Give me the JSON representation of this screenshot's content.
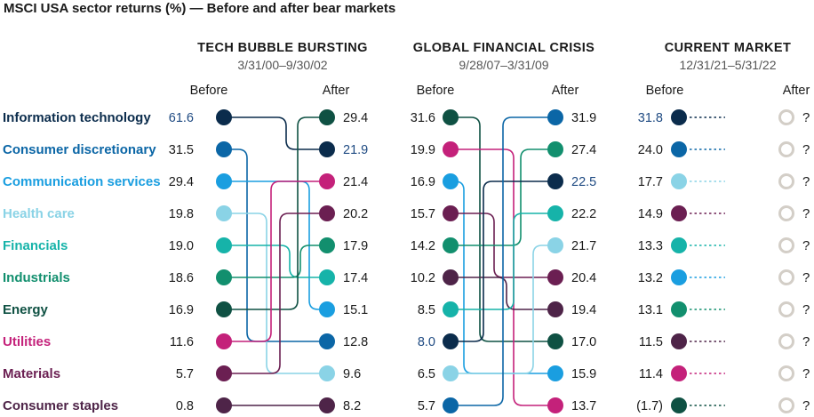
{
  "chart_data": {
    "type": "slope",
    "title": "MSCI USA sector returns (%) — Before and after bear markets",
    "before_label": "Before",
    "after_label": "After",
    "sectors": [
      {
        "name": "Information technology",
        "color": "#0b2c4c"
      },
      {
        "name": "Consumer discretionary",
        "color": "#0b66a6"
      },
      {
        "name": "Communication services",
        "color": "#1a9ee0"
      },
      {
        "name": "Health care",
        "color": "#8ad3e6"
      },
      {
        "name": "Financials",
        "color": "#16b3a9"
      },
      {
        "name": "Industrials",
        "color": "#128f6e"
      },
      {
        "name": "Energy",
        "color": "#0f5143"
      },
      {
        "name": "Utilities",
        "color": "#c4217a"
      },
      {
        "name": "Materials",
        "color": "#6b1f52"
      },
      {
        "name": "Consumer staples",
        "color": "#4e2448"
      }
    ],
    "periods": [
      {
        "name": "TECH BUBBLE BURSTING",
        "dates": "3/31/00–9/30/02",
        "before": [
          {
            "sector": "Information technology",
            "value": "61.6",
            "highlight": true
          },
          {
            "sector": "Consumer discretionary",
            "value": "31.5"
          },
          {
            "sector": "Communication services",
            "value": "29.4"
          },
          {
            "sector": "Health care",
            "value": "19.8"
          },
          {
            "sector": "Financials",
            "value": "19.0"
          },
          {
            "sector": "Industrials",
            "value": "18.6"
          },
          {
            "sector": "Energy",
            "value": "16.9"
          },
          {
            "sector": "Utilities",
            "value": "11.6"
          },
          {
            "sector": "Materials",
            "value": "5.7"
          },
          {
            "sector": "Consumer staples",
            "value": "0.8"
          }
        ],
        "after": [
          {
            "sector": "Energy",
            "value": "29.4"
          },
          {
            "sector": "Information technology",
            "value": "21.9",
            "highlight": true
          },
          {
            "sector": "Utilities",
            "value": "21.4"
          },
          {
            "sector": "Materials",
            "value": "20.2"
          },
          {
            "sector": "Industrials",
            "value": "17.9"
          },
          {
            "sector": "Financials",
            "value": "17.4"
          },
          {
            "sector": "Communication services",
            "value": "15.1"
          },
          {
            "sector": "Consumer discretionary",
            "value": "12.8"
          },
          {
            "sector": "Health care",
            "value": "9.6"
          },
          {
            "sector": "Consumer staples",
            "value": "8.2"
          }
        ]
      },
      {
        "name": "GLOBAL FINANCIAL CRISIS",
        "dates": "9/28/07–3/31/09",
        "before": [
          {
            "sector": "Energy",
            "value": "31.6"
          },
          {
            "sector": "Utilities",
            "value": "19.9"
          },
          {
            "sector": "Communication services",
            "value": "16.9"
          },
          {
            "sector": "Materials",
            "value": "15.7"
          },
          {
            "sector": "Industrials",
            "value": "14.2"
          },
          {
            "sector": "Consumer staples",
            "value": "10.2"
          },
          {
            "sector": "Financials",
            "value": "8.5"
          },
          {
            "sector": "Information technology",
            "value": "8.0",
            "highlight": true
          },
          {
            "sector": "Health care",
            "value": "6.5"
          },
          {
            "sector": "Consumer discretionary",
            "value": "5.7"
          }
        ],
        "after": [
          {
            "sector": "Consumer discretionary",
            "value": "31.9"
          },
          {
            "sector": "Industrials",
            "value": "27.4"
          },
          {
            "sector": "Information technology",
            "value": "22.5",
            "highlight": true
          },
          {
            "sector": "Financials",
            "value": "22.2"
          },
          {
            "sector": "Health care",
            "value": "21.7"
          },
          {
            "sector": "Materials",
            "value": "20.4"
          },
          {
            "sector": "Consumer staples",
            "value": "19.4"
          },
          {
            "sector": "Energy",
            "value": "17.0"
          },
          {
            "sector": "Communication services",
            "value": "15.9"
          },
          {
            "sector": "Utilities",
            "value": "13.7"
          }
        ]
      },
      {
        "name": "CURRENT MARKET",
        "dates": "12/31/21–5/31/22",
        "unknown_marker": "?",
        "before": [
          {
            "sector": "Information technology",
            "value": "31.8",
            "highlight": true
          },
          {
            "sector": "Consumer discretionary",
            "value": "24.0"
          },
          {
            "sector": "Health care",
            "value": "17.7"
          },
          {
            "sector": "Materials",
            "value": "14.9"
          },
          {
            "sector": "Financials",
            "value": "13.3"
          },
          {
            "sector": "Communication services",
            "value": "13.2"
          },
          {
            "sector": "Industrials",
            "value": "13.1"
          },
          {
            "sector": "Consumer staples",
            "value": "11.5"
          },
          {
            "sector": "Utilities",
            "value": "11.4"
          },
          {
            "sector": "Energy",
            "value": "(1.7)"
          }
        ],
        "after": []
      }
    ]
  }
}
